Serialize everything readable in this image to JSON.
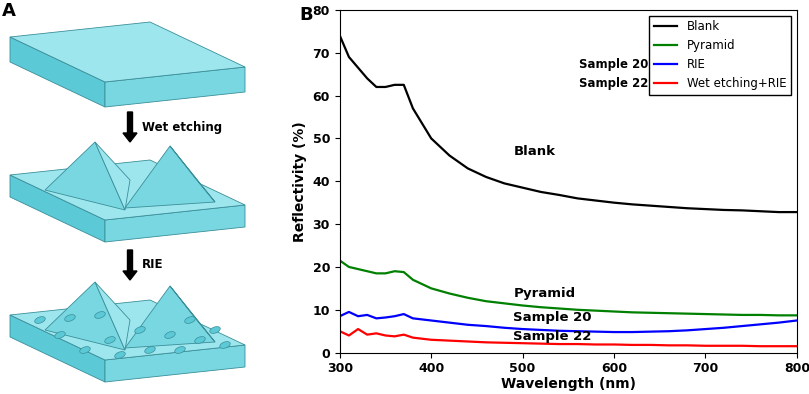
{
  "diagram": {
    "label": "A",
    "arrows": [
      "Wet etching",
      "RIE"
    ]
  },
  "chart_data": {
    "type": "line",
    "label": "B",
    "x_label": "Wavelength (nm)",
    "y_label": "Reflectivity (%)",
    "x": [
      300,
      310,
      320,
      330,
      340,
      350,
      360,
      370,
      380,
      400,
      420,
      440,
      460,
      480,
      500,
      520,
      540,
      560,
      580,
      600,
      620,
      640,
      660,
      680,
      700,
      720,
      740,
      760,
      780,
      800
    ],
    "series": [
      {
        "name": "Blank",
        "color": "#000000",
        "values": [
          74,
          69,
          66.5,
          64,
          62,
          62,
          62.5,
          62.5,
          57,
          50,
          46,
          43,
          41,
          39.5,
          38.5,
          37.5,
          36.8,
          36,
          35.5,
          35,
          34.6,
          34.3,
          34,
          33.7,
          33.5,
          33.3,
          33.2,
          33,
          32.8,
          32.8
        ]
      },
      {
        "name": "Pyramid",
        "color": "#008000",
        "values": [
          21.5,
          20,
          19.5,
          19,
          18.5,
          18.5,
          19,
          18.8,
          17,
          15,
          13.8,
          12.8,
          12,
          11.5,
          11,
          10.6,
          10.3,
          10,
          9.8,
          9.6,
          9.4,
          9.3,
          9.2,
          9.1,
          9,
          8.9,
          8.8,
          8.8,
          8.7,
          8.7
        ]
      },
      {
        "name": "RIE",
        "note": "Sample 20",
        "color": "#0000ff",
        "values": [
          8.5,
          9.5,
          8.5,
          8.8,
          8,
          8.2,
          8.5,
          9,
          8,
          7.5,
          7,
          6.5,
          6.2,
          5.8,
          5.5,
          5.3,
          5.1,
          5,
          4.9,
          4.8,
          4.8,
          4.9,
          5,
          5.2,
          5.5,
          5.8,
          6.2,
          6.6,
          7,
          7.5
        ]
      },
      {
        "name": "Wet etching+RIE",
        "note": "Sample 22",
        "color": "#ff0000",
        "values": [
          5,
          4,
          5.5,
          4.2,
          4.5,
          4,
          3.8,
          4.2,
          3.5,
          3,
          2.8,
          2.6,
          2.4,
          2.3,
          2.2,
          2.1,
          2,
          2,
          1.9,
          1.9,
          1.8,
          1.8,
          1.7,
          1.7,
          1.6,
          1.6,
          1.6,
          1.5,
          1.5,
          1.5
        ]
      }
    ],
    "annotations": [
      {
        "text": "Blank",
        "x": 490,
        "y": 47
      },
      {
        "text": "Pyramid",
        "x": 490,
        "y": 13.8
      },
      {
        "text": "Sample 20",
        "x": 490,
        "y": 8.3
      },
      {
        "text": "Sample 22",
        "x": 490,
        "y": 3.8
      }
    ],
    "xlim": [
      300,
      800
    ],
    "xticks": [
      300,
      400,
      500,
      600,
      700,
      800
    ],
    "ylim": [
      0,
      80
    ],
    "yticks": [
      0,
      10,
      20,
      30,
      40,
      50,
      60,
      70,
      80
    ],
    "legend": "upper right"
  }
}
